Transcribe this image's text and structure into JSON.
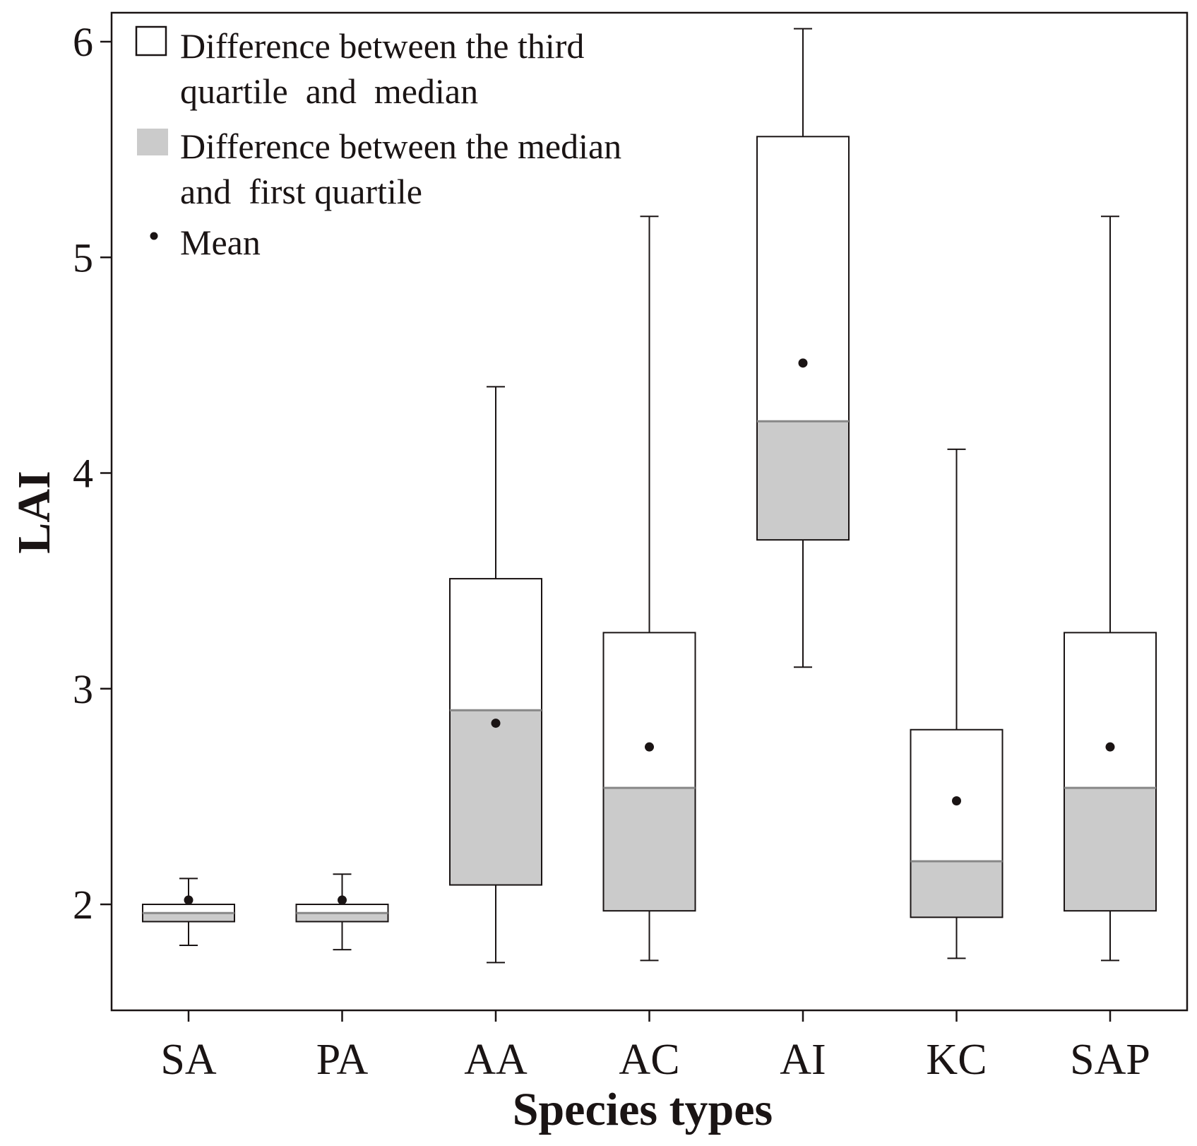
{
  "chart_data": {
    "type": "box",
    "xlabel": "Species types",
    "ylabel": "LAI",
    "ylim": [
      1.52,
      6.15
    ],
    "yticks": [
      "2",
      "3",
      "4",
      "5",
      "6"
    ],
    "categories": [
      "SA",
      "PA",
      "AA",
      "AC",
      "AI",
      "KC",
      "SAP"
    ],
    "series": [
      {
        "name": "SA",
        "whisker_low": 1.81,
        "q1": 1.92,
        "median": 1.96,
        "q3": 2.0,
        "whisker_high": 2.12,
        "mean": 2.02
      },
      {
        "name": "PA",
        "whisker_low": 1.79,
        "q1": 1.92,
        "median": 1.96,
        "q3": 2.0,
        "whisker_high": 2.14,
        "mean": 2.02
      },
      {
        "name": "AA",
        "whisker_low": 1.73,
        "q1": 2.09,
        "median": 2.9,
        "q3": 3.51,
        "whisker_high": 4.4,
        "mean": 2.84
      },
      {
        "name": "AC",
        "whisker_low": 1.74,
        "q1": 1.97,
        "median": 2.54,
        "q3": 3.26,
        "whisker_high": 5.19,
        "mean": 2.73
      },
      {
        "name": "AI",
        "whisker_low": 3.1,
        "q1": 3.69,
        "median": 4.24,
        "q3": 5.56,
        "whisker_high": 6.06,
        "mean": 4.51
      },
      {
        "name": "KC",
        "whisker_low": 1.75,
        "q1": 1.94,
        "median": 2.2,
        "q3": 2.81,
        "whisker_high": 4.11,
        "mean": 2.48
      },
      {
        "name": "SAP",
        "whisker_low": 1.74,
        "q1": 1.97,
        "median": 2.54,
        "q3": 3.26,
        "whisker_high": 5.19,
        "mean": 2.73
      }
    ],
    "legend": {
      "position": "top-left",
      "entries": [
        {
          "lines": [
            "Difference between the third",
            "quartile  and  median"
          ],
          "symbol": "open-box"
        },
        {
          "lines": [
            "Difference between the median",
            "and  first quartile"
          ],
          "symbol": "grey-box"
        },
        {
          "lines": [
            "Mean"
          ],
          "symbol": "dot"
        }
      ]
    },
    "colors": {
      "upper_box": "#ffffff",
      "lower_box": "#cbcbcb",
      "stroke": "#1a1414",
      "mean_dot": "#1a1414"
    }
  }
}
